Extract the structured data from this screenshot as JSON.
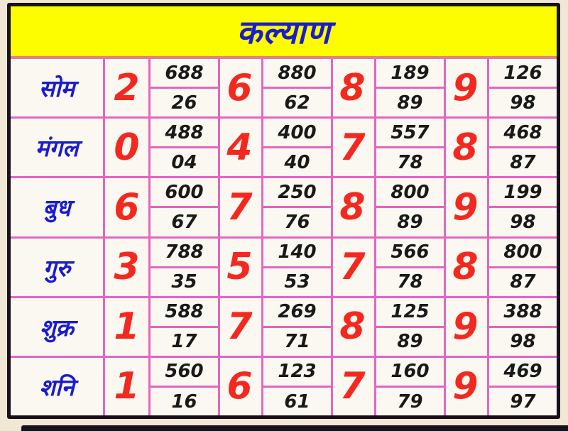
{
  "title": "कल्याण",
  "colors": {
    "title_background": "#fdfd00",
    "title_text": "#1a1ccf",
    "day_text": "#1a1ccf",
    "single_digit_text": "#f3291f",
    "number_text": "#191919",
    "grid_border": "#e465c2",
    "title_underline": "#e2808c",
    "outer_border": "#17121a",
    "cell_background": "#fbf8f1",
    "page_background": "#f0e7d5"
  },
  "chart_data": {
    "type": "table",
    "title": "कल्याण",
    "row_header": "day",
    "columns_pattern": [
      "single",
      "panel",
      "pair"
    ],
    "rows": [
      {
        "day": "सोम",
        "groups": [
          {
            "single": "2",
            "panel": "688",
            "pair": "26"
          },
          {
            "single": "6",
            "panel": "880",
            "pair": "62"
          },
          {
            "single": "8",
            "panel": "189",
            "pair": "89"
          },
          {
            "single": "9",
            "panel": "126",
            "pair": "98"
          }
        ]
      },
      {
        "day": "मंगल",
        "groups": [
          {
            "single": "0",
            "panel": "488",
            "pair": "04"
          },
          {
            "single": "4",
            "panel": "400",
            "pair": "40"
          },
          {
            "single": "7",
            "panel": "557",
            "pair": "78"
          },
          {
            "single": "8",
            "panel": "468",
            "pair": "87"
          }
        ]
      },
      {
        "day": "बुध",
        "groups": [
          {
            "single": "6",
            "panel": "600",
            "pair": "67"
          },
          {
            "single": "7",
            "panel": "250",
            "pair": "76"
          },
          {
            "single": "8",
            "panel": "800",
            "pair": "89"
          },
          {
            "single": "9",
            "panel": "199",
            "pair": "98"
          }
        ]
      },
      {
        "day": "गुरु",
        "groups": [
          {
            "single": "3",
            "panel": "788",
            "pair": "35"
          },
          {
            "single": "5",
            "panel": "140",
            "pair": "53"
          },
          {
            "single": "7",
            "panel": "566",
            "pair": "78"
          },
          {
            "single": "8",
            "panel": "800",
            "pair": "87"
          }
        ]
      },
      {
        "day": "शुक्र",
        "groups": [
          {
            "single": "1",
            "panel": "588",
            "pair": "17"
          },
          {
            "single": "7",
            "panel": "269",
            "pair": "71"
          },
          {
            "single": "8",
            "panel": "125",
            "pair": "89"
          },
          {
            "single": "9",
            "panel": "388",
            "pair": "98"
          }
        ]
      },
      {
        "day": "शनि",
        "groups": [
          {
            "single": "1",
            "panel": "560",
            "pair": "16"
          },
          {
            "single": "6",
            "panel": "123",
            "pair": "61"
          },
          {
            "single": "7",
            "panel": "160",
            "pair": "79"
          },
          {
            "single": "9",
            "panel": "469",
            "pair": "97"
          }
        ]
      }
    ]
  }
}
